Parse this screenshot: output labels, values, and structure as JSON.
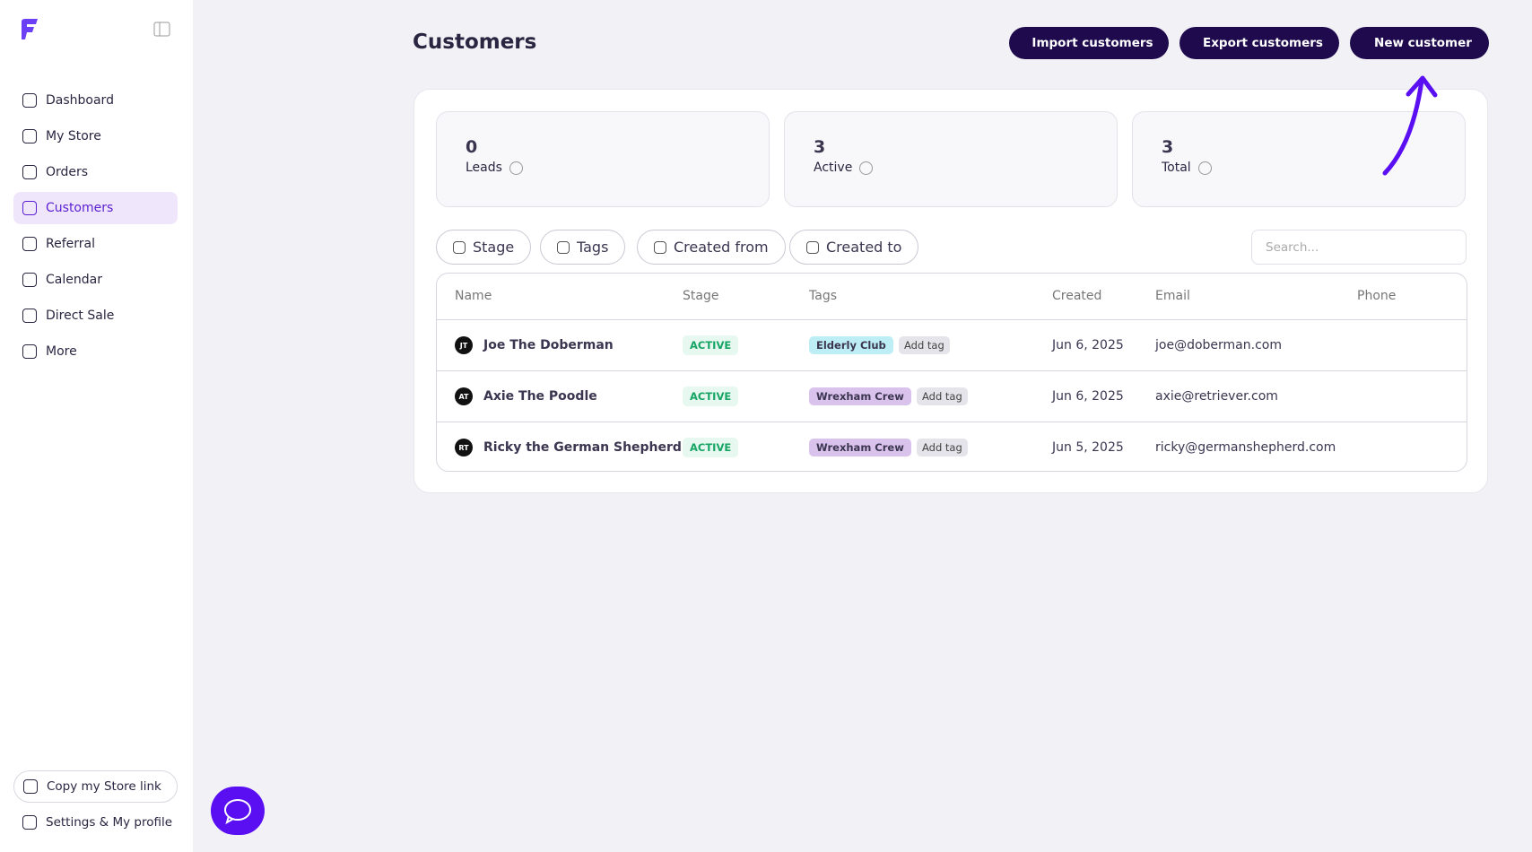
{
  "sidebar": {
    "nav": [
      "Dashboard",
      "My Store",
      "Orders",
      "Customers",
      "Referral",
      "Calendar",
      "Direct Sale",
      "More"
    ],
    "active": "Customers",
    "footer": [
      "Copy my Store link",
      "Settings & My profile"
    ]
  },
  "header": {
    "title": "Customers",
    "actions": [
      "Import customers",
      "Export customers",
      "New customer"
    ]
  },
  "stats": [
    {
      "value": "0",
      "label": "Leads"
    },
    {
      "value": "3",
      "label": "Active"
    },
    {
      "value": "3",
      "label": "Total"
    }
  ],
  "filters": [
    "Stage",
    "Tags",
    "Created from",
    "Created to"
  ],
  "search_placeholder": "Search...",
  "table": {
    "columns": [
      "Name",
      "Stage",
      "Tags",
      "Created",
      "Email",
      "Phone"
    ],
    "rows": [
      {
        "initials": "JT",
        "name": "Joe The Doberman",
        "stage": "ACTIVE",
        "tag": {
          "name": "Elderly Club",
          "color": "#bdeef5"
        },
        "add_tag": "Add tag",
        "created": "Jun 6, 2025",
        "email": "joe@doberman.com"
      },
      {
        "initials": "AT",
        "name": "Axie The Poodle",
        "stage": "ACTIVE",
        "tag": {
          "name": "Wrexham Crew",
          "color": "#d9c2ec"
        },
        "add_tag": "Add tag",
        "created": "Jun 6, 2025",
        "email": "axie@retriever.com"
      },
      {
        "initials": "RT",
        "name": "Ricky the German Shepherd",
        "stage": "ACTIVE",
        "tag": {
          "name": "Wrexham Crew",
          "color": "#d9c2ec"
        },
        "add_tag": "Add tag",
        "created": "Jun 5, 2025",
        "email": "ricky@germanshepherd.com"
      }
    ]
  }
}
